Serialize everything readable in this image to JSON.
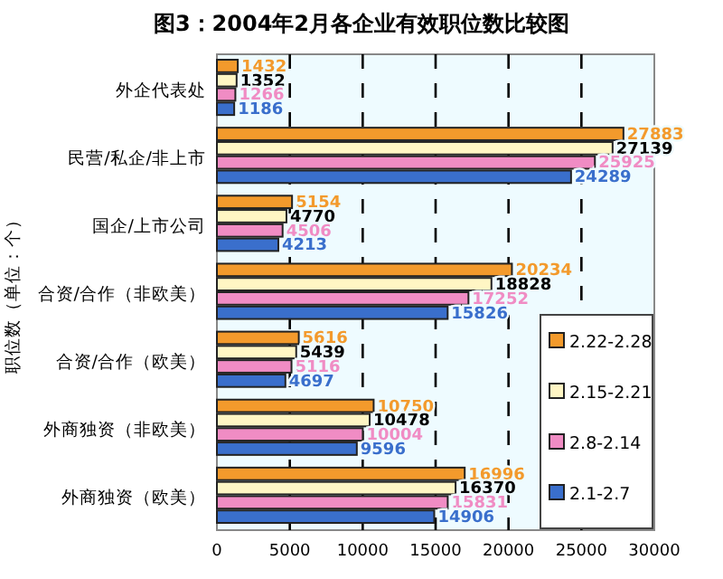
{
  "chart_data": {
    "type": "bar",
    "orientation": "horizontal",
    "title": "图3：2004年2月各企业有效职位数比较图",
    "ylabel": "职位数（单位：个）",
    "categories": [
      "外企代表处",
      "民营/私企/非上市",
      "国企/上市公司",
      "合资/合作（非欧美）",
      "合资/合作（欧美）",
      "外商独资（非欧美）",
      "外商独资（欧美）"
    ],
    "series": [
      {
        "name": "2.22-2.28",
        "color": "#f39a2c",
        "values": [
          1432,
          27883,
          5154,
          20234,
          5616,
          10750,
          16996
        ]
      },
      {
        "name": "2.15-2.21",
        "color": "#fff6c4",
        "values": [
          1352,
          27139,
          4770,
          18828,
          5439,
          10478,
          16370
        ]
      },
      {
        "name": "2.8-2.14",
        "color": "#f08cc4",
        "values": [
          1266,
          25925,
          4506,
          17252,
          5116,
          10004,
          15831
        ]
      },
      {
        "name": "2.1-2.7",
        "color": "#3a6fcc",
        "values": [
          1186,
          24289,
          4213,
          15826,
          4697,
          9596,
          14906
        ]
      }
    ],
    "xlim": [
      0,
      30000
    ],
    "xticks": [
      0,
      5000,
      10000,
      15000,
      20000,
      25000,
      30000
    ],
    "grid": "x",
    "legend": "bottom right",
    "data_labels": true
  }
}
